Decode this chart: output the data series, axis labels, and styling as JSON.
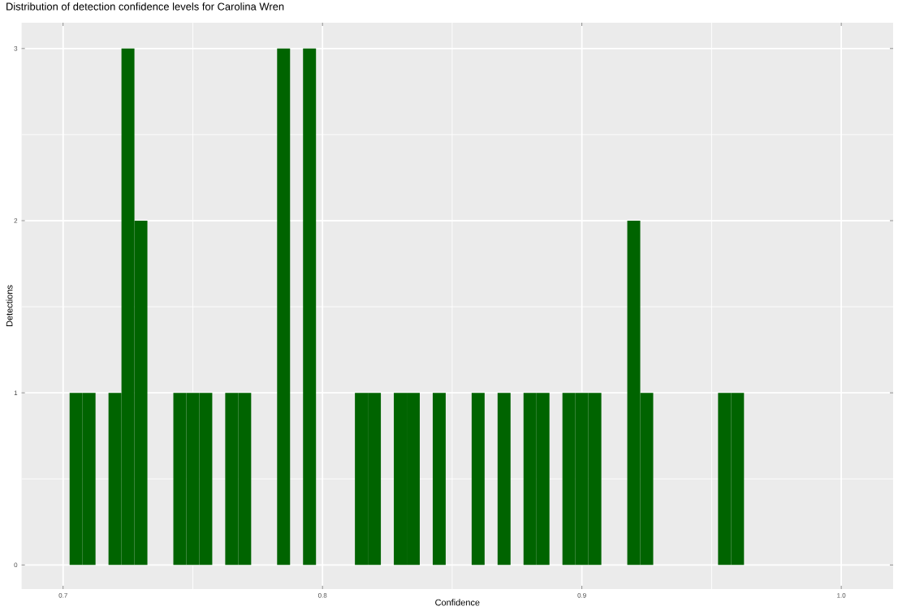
{
  "chart_data": {
    "type": "histogram",
    "title": "Distribution of detection confidence levels for Carolina Wren",
    "xlabel": "Confidence",
    "ylabel": "Detections",
    "bins": [
      0.7025,
      0.7075,
      0.7125,
      0.7175,
      0.7225,
      0.7275,
      0.7325,
      0.7375,
      0.7425,
      0.7475,
      0.7525,
      0.7575,
      0.7625,
      0.7675,
      0.7725,
      0.7775,
      0.7825,
      0.7875,
      0.7925,
      0.7975,
      0.8025,
      0.8075,
      0.8125,
      0.8175,
      0.8225,
      0.8275,
      0.8325,
      0.8375,
      0.8425,
      0.8475,
      0.8525,
      0.8575,
      0.8625,
      0.8675,
      0.8725,
      0.8775,
      0.8825,
      0.8875,
      0.8925,
      0.8975,
      0.9025,
      0.9075,
      0.9125,
      0.9175,
      0.9225,
      0.9275,
      0.9325,
      0.9375,
      0.9425,
      0.9475,
      0.9525,
      0.9575,
      0.9625
    ],
    "values": [
      1,
      1,
      0,
      1,
      3,
      2,
      0,
      0,
      1,
      1,
      1,
      0,
      1,
      1,
      0,
      0,
      3,
      0,
      3,
      0,
      0,
      0,
      1,
      1,
      0,
      1,
      1,
      0,
      1,
      0,
      0,
      1,
      0,
      1,
      0,
      1,
      1,
      0,
      1,
      1,
      1,
      0,
      0,
      2,
      1,
      0,
      0,
      0,
      0,
      0,
      1,
      1
    ],
    "color": "#006400",
    "xlim": [
      0.684,
      1.02
    ],
    "ylim": [
      -0.14,
      3.15
    ],
    "xticks": [
      0.7,
      0.8,
      0.9,
      {
        "value": 1.0,
        "label": "1.0"
      }
    ],
    "yticks": [
      0,
      1,
      2,
      3
    ],
    "grid": true
  }
}
